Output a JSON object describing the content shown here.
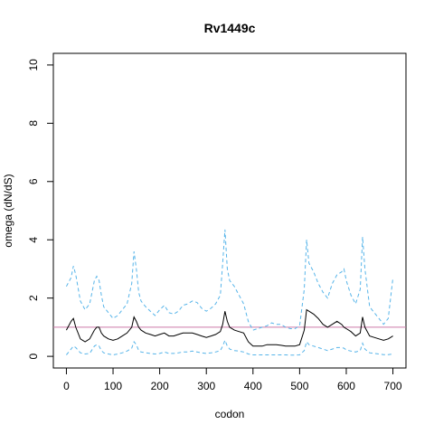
{
  "chart_data": {
    "type": "line",
    "title": "Rv1449c",
    "xlabel": "codon",
    "ylabel": "omega (dN/dS)",
    "xlim": [
      -28,
      728
    ],
    "ylim": [
      -0.4,
      10.4
    ],
    "xticks": [
      0,
      100,
      200,
      300,
      400,
      500,
      600,
      700
    ],
    "yticks": [
      0,
      2,
      4,
      6,
      8,
      10
    ],
    "grid": false,
    "reference_line": {
      "y": 1,
      "color": "#cc79a7"
    },
    "colors": {
      "estimate": "#000000",
      "ci": "#56b4e9"
    },
    "x": [
      0,
      10,
      15,
      20,
      30,
      40,
      50,
      60,
      65,
      70,
      75,
      80,
      90,
      100,
      110,
      120,
      130,
      140,
      145,
      150,
      155,
      160,
      170,
      180,
      190,
      200,
      210,
      220,
      230,
      240,
      250,
      260,
      270,
      280,
      290,
      300,
      310,
      320,
      330,
      335,
      340,
      345,
      350,
      360,
      370,
      380,
      390,
      400,
      410,
      420,
      430,
      440,
      450,
      460,
      470,
      480,
      490,
      500,
      510,
      515,
      520,
      530,
      540,
      550,
      560,
      570,
      580,
      590,
      595,
      600,
      610,
      620,
      630,
      635,
      640,
      650,
      660,
      670,
      680,
      690,
      700
    ],
    "series": [
      {
        "values": [
          0.9,
          1.2,
          1.3,
          1.0,
          0.6,
          0.5,
          0.6,
          0.9,
          1.0,
          1.0,
          0.8,
          0.7,
          0.6,
          0.55,
          0.6,
          0.7,
          0.8,
          1.0,
          1.35,
          1.2,
          1.0,
          0.9,
          0.8,
          0.75,
          0.7,
          0.75,
          0.8,
          0.7,
          0.7,
          0.75,
          0.8,
          0.8,
          0.8,
          0.75,
          0.7,
          0.65,
          0.7,
          0.75,
          0.85,
          1.1,
          1.55,
          1.2,
          1.0,
          0.9,
          0.85,
          0.8,
          0.5,
          0.35,
          0.35,
          0.35,
          0.4,
          0.4,
          0.4,
          0.38,
          0.35,
          0.35,
          0.35,
          0.4,
          0.9,
          1.6,
          1.55,
          1.45,
          1.3,
          1.1,
          1.0,
          1.1,
          1.2,
          1.1,
          1.0,
          0.95,
          0.85,
          0.7,
          0.8,
          1.35,
          1.0,
          0.7,
          0.65,
          0.6,
          0.55,
          0.6,
          0.7
        ]
      },
      {
        "values": [
          2.4,
          2.7,
          3.1,
          2.8,
          1.9,
          1.6,
          1.8,
          2.6,
          2.75,
          2.6,
          2.1,
          1.7,
          1.5,
          1.3,
          1.4,
          1.6,
          1.8,
          2.5,
          3.6,
          3.0,
          2.2,
          1.9,
          1.7,
          1.55,
          1.4,
          1.6,
          1.75,
          1.5,
          1.45,
          1.55,
          1.75,
          1.8,
          1.9,
          1.85,
          1.65,
          1.55,
          1.65,
          1.8,
          2.1,
          3.2,
          4.35,
          3.0,
          2.6,
          2.4,
          2.1,
          1.8,
          1.2,
          0.9,
          0.95,
          1.0,
          1.05,
          1.15,
          1.1,
          1.1,
          1.0,
          0.95,
          0.95,
          1.05,
          2.3,
          4.0,
          3.2,
          2.9,
          2.5,
          2.2,
          2.0,
          2.5,
          2.8,
          2.9,
          3.0,
          2.6,
          2.1,
          1.8,
          2.3,
          4.1,
          3.0,
          1.7,
          1.5,
          1.3,
          1.1,
          1.3,
          2.7
        ]
      },
      {
        "values": [
          0.05,
          0.25,
          0.35,
          0.3,
          0.12,
          0.08,
          0.1,
          0.35,
          0.4,
          0.35,
          0.2,
          0.12,
          0.08,
          0.05,
          0.08,
          0.12,
          0.18,
          0.28,
          0.5,
          0.4,
          0.2,
          0.15,
          0.12,
          0.1,
          0.08,
          0.1,
          0.15,
          0.1,
          0.1,
          0.12,
          0.15,
          0.15,
          0.18,
          0.15,
          0.12,
          0.1,
          0.12,
          0.15,
          0.2,
          0.35,
          0.55,
          0.35,
          0.25,
          0.2,
          0.18,
          0.15,
          0.08,
          0.05,
          0.05,
          0.05,
          0.05,
          0.05,
          0.05,
          0.05,
          0.05,
          0.04,
          0.04,
          0.05,
          0.2,
          0.5,
          0.4,
          0.35,
          0.3,
          0.25,
          0.2,
          0.25,
          0.3,
          0.3,
          0.28,
          0.22,
          0.18,
          0.15,
          0.2,
          0.45,
          0.25,
          0.12,
          0.1,
          0.08,
          0.06,
          0.06,
          0.08
        ]
      }
    ]
  }
}
